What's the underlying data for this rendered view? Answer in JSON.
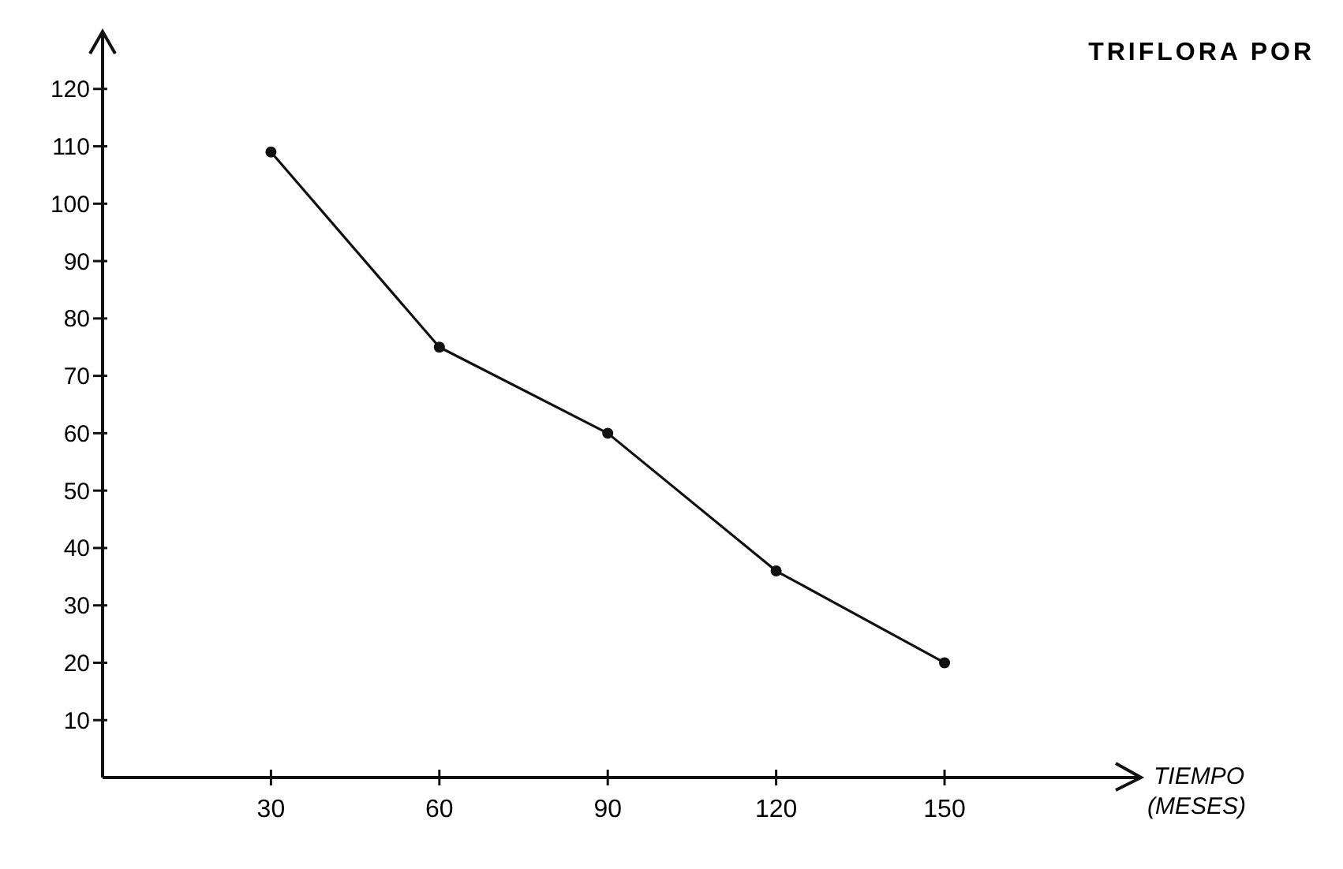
{
  "chart_data": {
    "type": "line",
    "title": "TRIFLORA POR",
    "xlabel": "TIEMPO (MESES)",
    "x": [
      30,
      60,
      90,
      120,
      150
    ],
    "series": [
      {
        "color": "#111111",
        "values": [
          109,
          75,
          60,
          36,
          20
        ]
      }
    ],
    "xlim": [
      0,
      185
    ],
    "xticks": [
      30,
      60,
      90,
      120,
      150
    ],
    "ylim": [
      0,
      130
    ],
    "yticks": [
      10,
      20,
      30,
      40,
      50,
      60,
      70,
      80,
      90,
      100,
      110,
      120
    ],
    "marker": "circle",
    "line_style": "solid"
  }
}
